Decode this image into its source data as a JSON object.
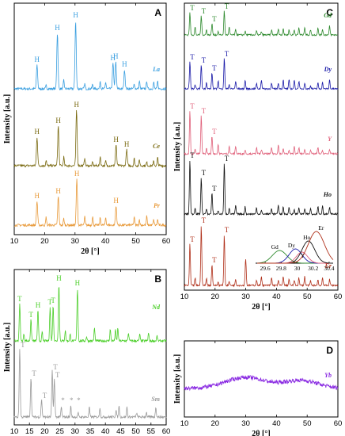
{
  "colors": {
    "La": "#3a9fe0",
    "Ce": "#7a6a10",
    "Pr": "#e89a3a",
    "Nd": "#4ccf2a",
    "Sm": "#9a9a9a",
    "Gd": "#2e8a2e",
    "Dy": "#1a1aa8",
    "Y": "#e0607a",
    "Ho": "#111111",
    "Er": "#b0301a",
    "Yb": "#8a2be2"
  },
  "chart_data": [
    {
      "panel": "A",
      "type": "line",
      "xlabel": "2θ [°]",
      "ylabel": "Intensity [a.u.]",
      "xlim": [
        10,
        60
      ],
      "xticks": [
        10,
        20,
        30,
        40,
        50,
        60
      ],
      "series": [
        {
          "name": "La",
          "peaks_2theta": [
            17.5,
            24.2,
            30.2,
            42.5,
            43.4,
            46.3
          ]
        },
        {
          "name": "Ce",
          "peaks_2theta": [
            17.5,
            24.5,
            30.5,
            43.5,
            47.0
          ]
        },
        {
          "name": "Pr",
          "peaks_2theta": [
            17.5,
            24.5,
            30.6,
            43.5
          ]
        }
      ],
      "markers": [
        "H"
      ]
    },
    {
      "panel": "B",
      "type": "line",
      "xlabel": "2θ [°]",
      "ylabel": "Intensity [a.u.]",
      "xlim": [
        10,
        60
      ],
      "xticks": [
        10,
        15,
        20,
        25,
        30,
        35,
        40,
        45,
        50,
        55,
        60
      ],
      "series": [
        {
          "name": "Nd",
          "T_peaks": [
            11.8,
            15.5,
            21.8,
            22.8
          ],
          "H_peaks": [
            17.8,
            24.7,
            30.8
          ]
        },
        {
          "name": "Sm",
          "T_peaks": [
            11.8,
            15.5,
            19.0,
            22.5,
            23.2
          ]
        }
      ],
      "markers": [
        "T",
        "H",
        "*"
      ]
    },
    {
      "panel": "C",
      "type": "line",
      "xlabel": "2θ [°]",
      "ylabel": "Intensity [a.u.]",
      "xlim": [
        10,
        60
      ],
      "xticks": [
        10,
        20,
        30,
        40,
        50,
        60
      ],
      "series": [
        {
          "name": "Gd",
          "T_peaks": [
            11.8,
            15.5,
            19.0,
            23.0
          ]
        },
        {
          "name": "Dy",
          "T_peaks": [
            11.8,
            15.5,
            19.0,
            23.0
          ]
        },
        {
          "name": "Y",
          "T_peaks": [
            11.8,
            15.5,
            19.0
          ]
        },
        {
          "name": "Ho",
          "T_peaks": [
            11.8,
            15.5,
            19.0,
            23.0
          ]
        },
        {
          "name": "Er",
          "T_peaks": [
            11.8,
            15.5,
            19.0,
            23.0
          ]
        }
      ],
      "inset": {
        "xticks": [
          "29.6",
          "29.8",
          "30",
          "30.2",
          "30.4"
        ],
        "peak_labels": [
          "Gd",
          "Dy",
          "Ho",
          "Er",
          "Y"
        ]
      },
      "markers": [
        "T"
      ]
    },
    {
      "panel": "D",
      "type": "line",
      "xlabel": "2θ [°]",
      "ylabel": "Intensity [a.u.]",
      "xlim": [
        10,
        60
      ],
      "xticks": [
        10,
        20,
        30,
        40,
        50,
        60
      ],
      "series": [
        {
          "name": "Yb",
          "broad_humps_2theta": [
            30,
            48
          ]
        }
      ]
    }
  ]
}
